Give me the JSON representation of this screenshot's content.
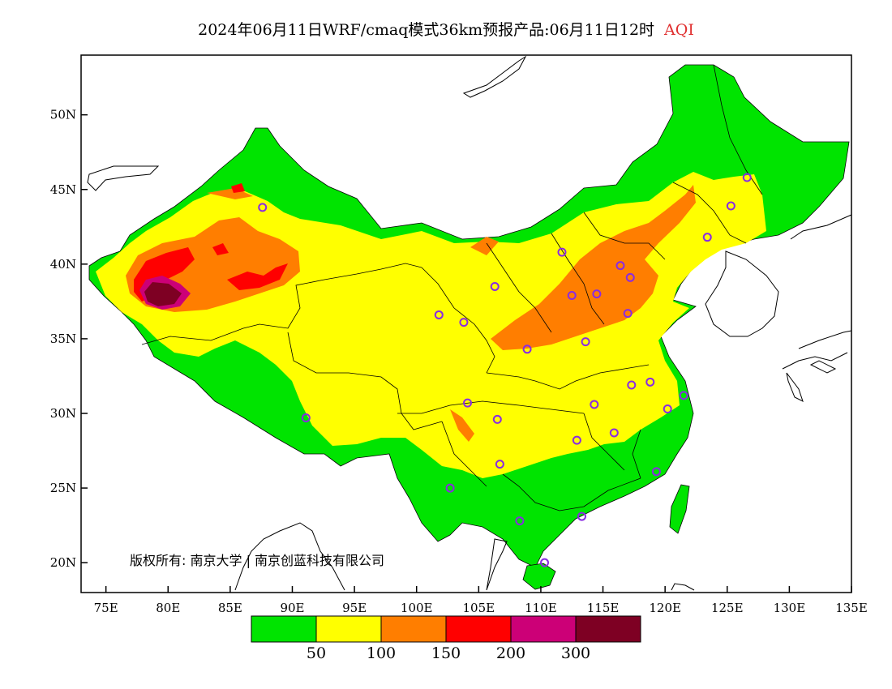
{
  "title": {
    "main": "2024年06月11日WRF/cmaq模式36km预报产品:06月11日12时",
    "variable": "AQI",
    "variable_color": "#e03030"
  },
  "axes": {
    "lat_labels": [
      "50N",
      "45N",
      "40N",
      "35N",
      "30N",
      "25N",
      "20N"
    ],
    "lat_values": [
      50,
      45,
      40,
      35,
      30,
      25,
      20
    ],
    "lon_labels": [
      "75E",
      "80E",
      "85E",
      "90E",
      "95E",
      "100E",
      "105E",
      "110E",
      "115E",
      "120E",
      "125E",
      "130E",
      "135E"
    ],
    "lon_values": [
      75,
      80,
      85,
      90,
      95,
      100,
      105,
      110,
      115,
      120,
      125,
      130,
      135
    ],
    "lon_range": [
      73,
      135
    ],
    "lat_range": [
      18,
      54
    ]
  },
  "legend": {
    "colors": [
      "#00e400",
      "#ffff00",
      "#ff7e00",
      "#ff0000",
      "#cc0077",
      "#7e0023"
    ],
    "labels": [
      "50",
      "100",
      "150",
      "200",
      "300"
    ]
  },
  "copyright": "版权所有: 南京大学 | 南京创蓝科技有限公司",
  "stations": [
    [
      87.6,
      43.8
    ],
    [
      126.6,
      45.8
    ],
    [
      125.3,
      43.9
    ],
    [
      123.4,
      41.8
    ],
    [
      111.7,
      40.8
    ],
    [
      116.4,
      39.9
    ],
    [
      117.2,
      39.1
    ],
    [
      114.5,
      38.0
    ],
    [
      112.5,
      37.9
    ],
    [
      117.0,
      36.7
    ],
    [
      106.3,
      38.5
    ],
    [
      101.8,
      36.6
    ],
    [
      103.8,
      36.1
    ],
    [
      113.6,
      34.8
    ],
    [
      108.9,
      34.3
    ],
    [
      118.8,
      32.1
    ],
    [
      117.3,
      31.9
    ],
    [
      120.2,
      30.3
    ],
    [
      121.5,
      31.2
    ],
    [
      114.3,
      30.6
    ],
    [
      104.1,
      30.7
    ],
    [
      106.5,
      29.6
    ],
    [
      112.9,
      28.2
    ],
    [
      115.9,
      28.7
    ],
    [
      106.7,
      26.6
    ],
    [
      119.3,
      26.1
    ],
    [
      102.7,
      25.0
    ],
    [
      113.3,
      23.1
    ],
    [
      108.3,
      22.8
    ],
    [
      110.3,
      20.0
    ],
    [
      91.1,
      29.7
    ]
  ]
}
